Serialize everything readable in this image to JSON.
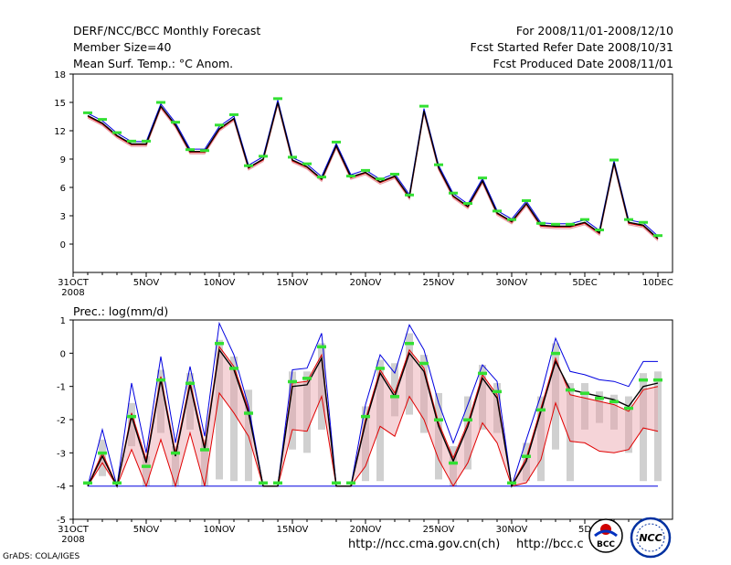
{
  "header": {
    "title": "DERF/NCC/BCC Monthly Forecast",
    "member_size": "Member Size=40",
    "variable": "Mean Surf. Temp.: °C Anom.",
    "period": "For 2008/11/01-2008/12/10",
    "start_date": "Fcst Started Refer Date 2008/10/31",
    "produced_date": "Fcst Produced Date 2008/11/01"
  },
  "footer": {
    "url1": "http://ncc.cma.gov.cn(ch)",
    "url2": "http://bcc.c",
    "credit": "GrADS: COLA/IGES",
    "logo1_text": "BCC",
    "logo2_text": "NCC"
  },
  "colors": {
    "green": "#33e033",
    "red": "#e00000",
    "blue": "#0000e0",
    "pink": "#e8a0a8",
    "gray": "#d0d0d0",
    "black": "#000000"
  },
  "chart_data": [
    {
      "type": "line",
      "title": "Mean Surf. Temp.: °C Anom.",
      "x_tick_labels": [
        "31OCT",
        "5NOV",
        "10NOV",
        "15NOV",
        "20NOV",
        "25NOV",
        "30NOV",
        "5DEC",
        "10DEC"
      ],
      "x_tick_index": [
        0,
        5,
        10,
        15,
        20,
        25,
        30,
        35,
        40
      ],
      "x_sublabel": "2008",
      "ylim": [
        -3,
        18
      ],
      "y_ticks": [
        "18",
        "15",
        "12",
        "9",
        "6",
        "3",
        "0"
      ],
      "y_tick_values": [
        18,
        15,
        12,
        9,
        6,
        3,
        0
      ],
      "x_index": [
        1,
        2,
        3,
        4,
        5,
        6,
        7,
        8,
        9,
        10,
        11,
        12,
        13,
        14,
        15,
        16,
        17,
        18,
        19,
        20,
        21,
        22,
        23,
        24,
        25,
        26,
        27,
        28,
        29,
        30,
        31,
        32,
        33,
        34,
        35,
        36,
        37,
        38,
        39,
        40
      ],
      "series": [
        {
          "name": "green markers",
          "values": [
            13.9,
            13.2,
            11.8,
            10.9,
            10.9,
            15.0,
            12.9,
            10.0,
            9.9,
            12.6,
            13.7,
            8.3,
            9.3,
            15.4,
            9.2,
            8.5,
            7.1,
            10.8,
            7.2,
            7.8,
            6.9,
            7.4,
            5.2,
            14.6,
            8.4,
            5.4,
            4.3,
            7.0,
            3.5,
            2.6,
            4.6,
            2.2,
            2.1,
            2.1,
            2.6,
            1.5,
            8.9,
            2.6,
            2.3,
            0.9
          ]
        },
        {
          "name": "ensemble mean",
          "values": [
            13.6,
            12.8,
            11.5,
            10.6,
            10.6,
            14.6,
            12.6,
            9.8,
            9.8,
            12.2,
            13.3,
            8.1,
            9.0,
            15.0,
            8.9,
            8.2,
            6.9,
            10.4,
            7.1,
            7.6,
            6.6,
            7.2,
            5.0,
            14.1,
            8.1,
            5.1,
            4.0,
            6.7,
            3.3,
            2.4,
            4.3,
            2.0,
            1.9,
            1.9,
            2.3,
            1.2,
            8.6,
            2.3,
            2.0,
            0.6
          ]
        }
      ],
      "spread_offset": 0.25
    },
    {
      "type": "line",
      "title": "Prec.: log(mm/d)",
      "x_tick_labels": [
        "31OCT",
        "5NOV",
        "10NOV",
        "15NOV",
        "20NOV",
        "25NOV",
        "30NOV",
        "5D"
      ],
      "x_tick_index": [
        0,
        5,
        10,
        15,
        20,
        25,
        30,
        35
      ],
      "x_sublabel": "2008",
      "ylim": [
        -5,
        1
      ],
      "y_ticks": [
        "1",
        "0",
        "-1",
        "-2",
        "-3",
        "-4",
        "-5"
      ],
      "y_tick_values": [
        1,
        0,
        -1,
        -2,
        -3,
        -4,
        -5
      ],
      "x_index": [
        1,
        2,
        3,
        4,
        5,
        6,
        7,
        8,
        9,
        10,
        11,
        12,
        13,
        14,
        15,
        16,
        17,
        18,
        19,
        20,
        21,
        22,
        23,
        24,
        25,
        26,
        27,
        28,
        29,
        30,
        31,
        32,
        33,
        34,
        35,
        36,
        37,
        38,
        39,
        40
      ],
      "series": [
        {
          "name": "green markers",
          "values": [
            -3.9,
            -3.0,
            -3.9,
            -1.9,
            -3.4,
            -0.8,
            -3.0,
            -0.9,
            -2.9,
            0.3,
            -0.45,
            -1.8,
            -3.9,
            -3.9,
            -0.85,
            -0.75,
            0.2,
            -3.9,
            -3.9,
            -1.9,
            -0.45,
            -1.3,
            0.3,
            -0.3,
            -2.0,
            -3.3,
            -2.0,
            -0.6,
            -1.15,
            -3.9,
            -3.1,
            -1.7,
            0.0,
            -1.1,
            -1.2,
            -1.35,
            -1.45,
            -1.65,
            -0.8,
            -0.8
          ]
        },
        {
          "name": "max (blue)",
          "values": [
            -4.0,
            -2.3,
            -4.0,
            -0.9,
            -3.0,
            -0.1,
            -2.7,
            -0.4,
            -2.5,
            0.9,
            -0.05,
            -1.6,
            -4.0,
            -4.0,
            -0.5,
            -0.45,
            0.6,
            -4.0,
            -4.0,
            -1.55,
            -0.05,
            -0.6,
            0.85,
            0.1,
            -1.5,
            -2.7,
            -1.55,
            -0.35,
            -0.85,
            -4.0,
            -2.6,
            -1.25,
            0.45,
            -0.55,
            -0.65,
            -0.8,
            -0.85,
            -1.0,
            -0.25,
            -0.25
          ]
        },
        {
          "name": "mean (black)",
          "values": [
            -4.0,
            -3.1,
            -4.0,
            -1.9,
            -3.3,
            -0.8,
            -3.1,
            -0.95,
            -2.9,
            0.1,
            -0.5,
            -1.8,
            -4.0,
            -4.0,
            -1.0,
            -0.95,
            -0.15,
            -4.0,
            -4.0,
            -2.1,
            -0.6,
            -1.3,
            0.0,
            -0.55,
            -2.2,
            -3.25,
            -2.2,
            -0.75,
            -1.35,
            -4.0,
            -3.25,
            -1.75,
            -0.25,
            -1.1,
            -1.2,
            -1.3,
            -1.4,
            -1.6,
            -1.0,
            -0.9
          ]
        },
        {
          "name": "upper red",
          "values": [
            -4.0,
            -3.0,
            -4.0,
            -1.8,
            -3.2,
            -0.7,
            -3.0,
            -0.85,
            -2.8,
            0.2,
            -0.4,
            -1.7,
            -4.0,
            -4.0,
            -0.9,
            -0.85,
            -0.05,
            -4.0,
            -4.0,
            -2.0,
            -0.5,
            -1.2,
            0.1,
            -0.45,
            -2.1,
            -3.15,
            -2.1,
            -0.65,
            -1.25,
            -4.0,
            -3.15,
            -1.65,
            -0.15,
            -1.25,
            -1.35,
            -1.45,
            -1.55,
            -1.75,
            -1.1,
            -1.0
          ]
        },
        {
          "name": "lower red",
          "values": [
            -4.0,
            -3.3,
            -4.0,
            -2.9,
            -4.0,
            -2.6,
            -4.0,
            -2.4,
            -4.0,
            -1.2,
            -1.8,
            -2.5,
            -4.0,
            -4.0,
            -2.3,
            -2.35,
            -1.3,
            -4.0,
            -4.0,
            -3.4,
            -2.2,
            -2.5,
            -1.3,
            -2.0,
            -3.2,
            -4.0,
            -3.3,
            -2.1,
            -2.7,
            -4.0,
            -3.9,
            -3.2,
            -1.5,
            -2.65,
            -2.7,
            -2.95,
            -3.0,
            -2.9,
            -2.25,
            -2.35
          ]
        },
        {
          "name": "min (blue)",
          "values": [
            -4.0,
            -4.0,
            -4.0,
            -4.0,
            -4.0,
            -4.0,
            -4.0,
            -4.0,
            -4.0,
            -4.0,
            -4.0,
            -4.0,
            -4.0,
            -4.0,
            -4.0,
            -4.0,
            -4.0,
            -4.0,
            -4.0,
            -4.0,
            -4.0,
            -4.0,
            -4.0,
            -4.0,
            -4.0,
            -4.0,
            -4.0,
            -4.0,
            -4.0,
            -4.0,
            -4.0,
            -4.0,
            -4.0,
            -4.0,
            -4.0,
            -4.0,
            -4.0,
            -4.0,
            -4.0,
            -4.0
          ]
        }
      ],
      "bars": {
        "name": "ensemble range (gray)",
        "top": [
          -4.0,
          -2.6,
          -4.0,
          -1.5,
          -3.1,
          -0.5,
          -2.8,
          -0.6,
          -2.6,
          0.4,
          -0.1,
          -1.1,
          -4.0,
          -4.0,
          -0.55,
          -0.55,
          0.3,
          -4.0,
          -4.0,
          -1.6,
          -0.2,
          -0.3,
          0.6,
          -0.05,
          -1.2,
          -2.8,
          -1.3,
          -0.35,
          -0.9,
          -4.0,
          -2.7,
          -1.3,
          0.3,
          -0.9,
          -0.9,
          -1.15,
          -1.25,
          -1.3,
          -0.6,
          -0.55
        ],
        "bottom": [
          -4.0,
          -3.7,
          -4.0,
          -2.8,
          -4.0,
          -2.4,
          -4.0,
          -2.3,
          -4.0,
          -3.8,
          -3.85,
          -3.85,
          -4.0,
          -4.0,
          -2.9,
          -3.0,
          -2.3,
          -4.0,
          -4.0,
          -3.85,
          -3.85,
          -1.9,
          -1.85,
          -2.4,
          -3.8,
          -4.0,
          -3.5,
          -2.3,
          -2.4,
          -4.0,
          -3.85,
          -3.85,
          -2.9,
          -3.85,
          -2.3,
          -2.1,
          -2.3,
          -3.0,
          -3.85,
          -3.85
        ]
      }
    }
  ]
}
